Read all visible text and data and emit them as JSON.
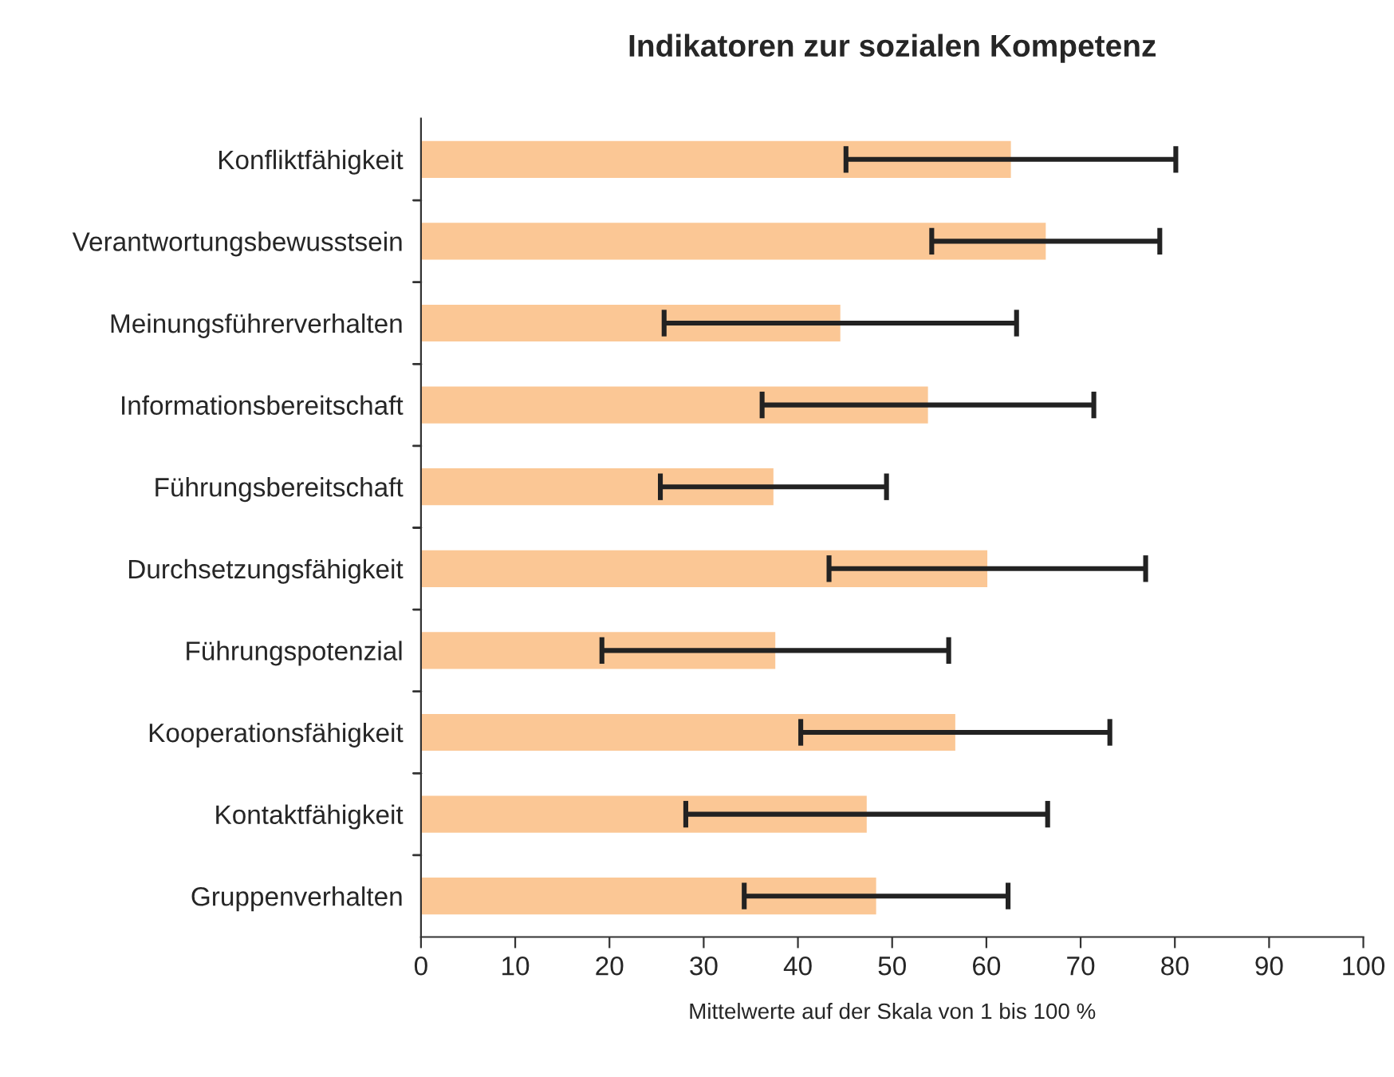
{
  "chart_data": {
    "type": "bar",
    "orientation": "horizontal",
    "title": "Indikatoren zur sozialen Kompetenz",
    "xlabel": "Mittelwerte auf der Skala von 1 bis 100 %",
    "categories": [
      "Konfliktfähigkeit",
      "Verantwortungsbewusstsein",
      "Meinungsführerverhalten",
      "Informationsbereitschaft",
      "Führungsbereitschaft",
      "Durchsetzungsfähigkeit",
      "Führungspotenzial",
      "Kooperationsfähigkeit",
      "Kontaktfähigkeit",
      "Gruppenverhalten"
    ],
    "values": [
      62.6,
      66.3,
      44.5,
      53.8,
      37.4,
      60.1,
      37.6,
      56.7,
      47.3,
      48.3
    ],
    "errors": [
      17.5,
      12.1,
      18.7,
      17.6,
      12.0,
      16.8,
      18.4,
      16.4,
      19.2,
      14.0
    ],
    "color": "#fbc795",
    "xlim": [
      0,
      100
    ],
    "xticks": [
      0,
      10,
      20,
      30,
      40,
      50,
      60,
      70,
      80,
      90,
      100
    ],
    "grid": false,
    "legend": false
  }
}
